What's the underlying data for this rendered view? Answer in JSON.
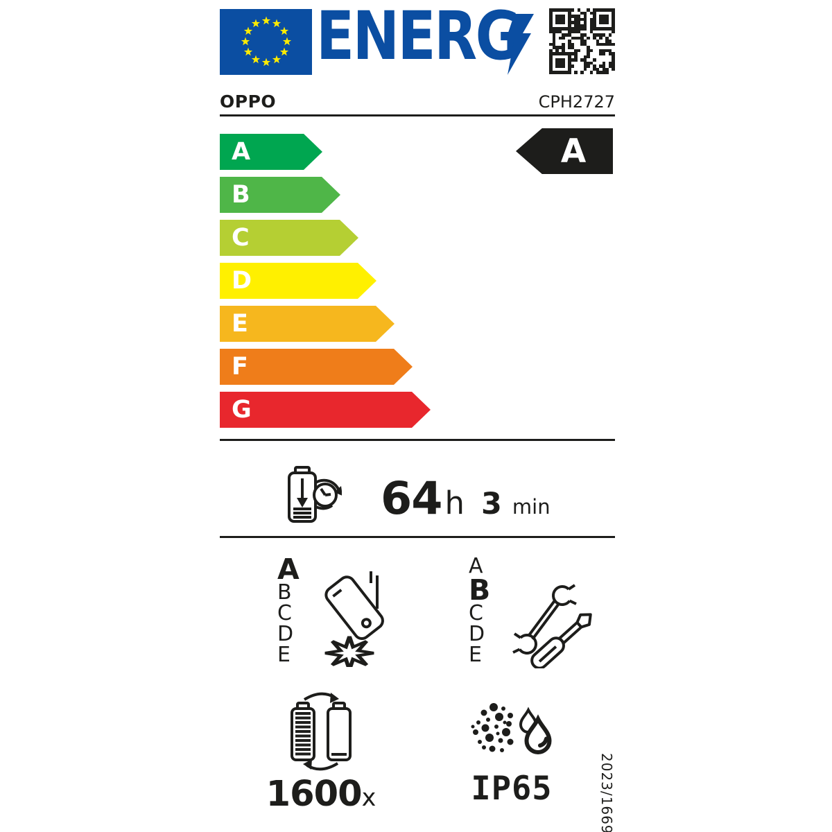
{
  "colors": {
    "flag_blue": "#0B4EA2",
    "logo_blue": "#0B4EA2",
    "star_yellow": "#FFEC00",
    "ink": "#1D1D1B",
    "rating_arrow_bg": "#1D1D1B",
    "rating_text": "#FFFFFF"
  },
  "header": {
    "logo_text": "ENERG",
    "brand": "OPPO",
    "model": "CPH2727"
  },
  "energy_scale": {
    "rating": "A",
    "classes": [
      {
        "label": "A",
        "color": "#00A650"
      },
      {
        "label": "B",
        "color": "#4FB648"
      },
      {
        "label": "C",
        "color": "#B5CF33"
      },
      {
        "label": "D",
        "color": "#FFF000"
      },
      {
        "label": "E",
        "color": "#F6B71E"
      },
      {
        "label": "F",
        "color": "#EF7D1A"
      },
      {
        "label": "G",
        "color": "#E8272D"
      }
    ]
  },
  "battery_endurance": {
    "hours": "64",
    "hours_unit": "h",
    "minutes": "3",
    "minutes_unit": "min"
  },
  "drop_resistance": {
    "scale": [
      "A",
      "B",
      "C",
      "D",
      "E"
    ],
    "rating": "A"
  },
  "repairability": {
    "scale": [
      "A",
      "B",
      "C",
      "D",
      "E"
    ],
    "rating": "B"
  },
  "battery_cycles": {
    "value": "1600",
    "unit": "x"
  },
  "ingress_protection": {
    "rating": "IP65"
  },
  "regulation_number": "2023/1669",
  "icons": {
    "eu_flag": "eu-flag",
    "energy_bolt": "lightning-bolt-icon",
    "qr": "qr-code",
    "battery_endurance": "battery-clock-icon",
    "drop_resistance": "falling-phone-icon",
    "repairability": "tools-icon",
    "battery_cycles": "battery-cycle-icon",
    "ingress_protection": "dust-water-icon"
  }
}
